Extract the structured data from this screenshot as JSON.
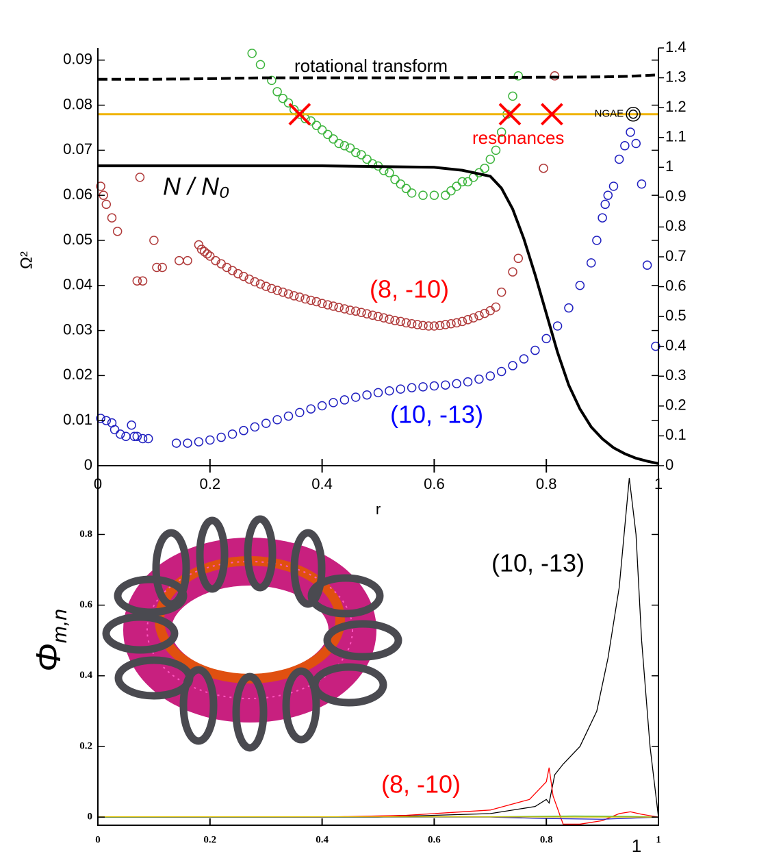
{
  "chart_data": [
    {
      "type": "scatter",
      "xlabel": "r",
      "ylabel": "Ω²",
      "xlim": [
        0,
        1
      ],
      "xticks": [
        0,
        0.2,
        0.4,
        0.6,
        0.8,
        1
      ],
      "ylim": [
        0,
        0.0927
      ],
      "yticks": [
        0,
        0.01,
        0.02,
        0.03,
        0.04,
        0.05,
        0.06,
        0.07,
        0.08,
        0.09
      ],
      "y2lim": [
        0,
        1.4
      ],
      "y2ticks": [
        0,
        0.1,
        0.2,
        0.3,
        0.4,
        0.5,
        0.6,
        0.7,
        0.8,
        0.9,
        1,
        1.1,
        1.2,
        1.3,
        1.4
      ],
      "hline": {
        "value": 0.078,
        "color": "#f0b400"
      },
      "crosses": {
        "color": "#ff0000",
        "x": [
          0.36,
          0.735,
          0.81
        ],
        "values": [
          0.078,
          0.078,
          0.078
        ]
      },
      "ngae": {
        "label": "NGAE",
        "x": 0.955,
        "value": 0.078,
        "color": "#000000"
      },
      "annotations": [
        {
          "text": "rotational transform",
          "color": "#000000"
        },
        {
          "text": "resonances",
          "color": "#ff0000"
        },
        {
          "text": "N / N₀",
          "color": "#000000"
        },
        {
          "text": "(8, -10)",
          "color": "#ff0000"
        },
        {
          "text": "(10, -13)",
          "color": "#0000ff"
        }
      ],
      "series": [
        {
          "style": "circle",
          "color": "#3cb43c",
          "x": [
            0.275,
            0.29,
            0.31,
            0.32,
            0.33,
            0.34,
            0.35,
            0.36,
            0.37,
            0.38,
            0.39,
            0.4,
            0.41,
            0.42,
            0.43,
            0.44,
            0.45,
            0.46,
            0.47,
            0.48,
            0.49,
            0.5,
            0.51,
            0.52,
            0.53,
            0.54,
            0.55,
            0.56,
            0.58,
            0.6,
            0.62,
            0.63,
            0.64,
            0.65,
            0.66,
            0.67,
            0.68,
            0.69,
            0.7,
            0.71,
            0.72,
            0.73,
            0.74,
            0.75
          ],
          "values": [
            0.0915,
            0.089,
            0.0855,
            0.083,
            0.0815,
            0.0805,
            0.079,
            0.078,
            0.077,
            0.0765,
            0.0755,
            0.0745,
            0.0735,
            0.0725,
            0.0715,
            0.071,
            0.0705,
            0.0695,
            0.069,
            0.068,
            0.067,
            0.0665,
            0.0655,
            0.065,
            0.0635,
            0.0625,
            0.0615,
            0.0605,
            0.06,
            0.06,
            0.06,
            0.061,
            0.062,
            0.063,
            0.063,
            0.064,
            0.065,
            0.066,
            0.068,
            0.07,
            0.074,
            0.078,
            0.082,
            0.0865
          ]
        },
        {
          "style": "circle",
          "color": "#b03a3a",
          "x": [
            0.005,
            0.01,
            0.015,
            0.025,
            0.035,
            0.07,
            0.075,
            0.08,
            0.1,
            0.105,
            0.115,
            0.145,
            0.16,
            0.18,
            0.185,
            0.19,
            0.195,
            0.2,
            0.21,
            0.22,
            0.23,
            0.24,
            0.25,
            0.26,
            0.27,
            0.28,
            0.29,
            0.3,
            0.31,
            0.32,
            0.33,
            0.34,
            0.35,
            0.36,
            0.37,
            0.38,
            0.39,
            0.4,
            0.41,
            0.42,
            0.43,
            0.44,
            0.45,
            0.46,
            0.47,
            0.48,
            0.49,
            0.5,
            0.51,
            0.52,
            0.53,
            0.54,
            0.55,
            0.56,
            0.57,
            0.58,
            0.59,
            0.6,
            0.61,
            0.62,
            0.63,
            0.64,
            0.65,
            0.66,
            0.67,
            0.68,
            0.69,
            0.7,
            0.71,
            0.72,
            0.74,
            0.75,
            0.795,
            0.815
          ],
          "values": [
            0.062,
            0.06,
            0.058,
            0.055,
            0.052,
            0.041,
            0.064,
            0.041,
            0.05,
            0.044,
            0.044,
            0.0455,
            0.0455,
            0.049,
            0.048,
            0.0475,
            0.047,
            0.0465,
            0.0455,
            0.0448,
            0.044,
            0.0433,
            0.0426,
            0.042,
            0.0414,
            0.0408,
            0.0403,
            0.0398,
            0.0393,
            0.0389,
            0.0385,
            0.0381,
            0.0377,
            0.0374,
            0.037,
            0.0367,
            0.0364,
            0.036,
            0.0357,
            0.0354,
            0.0351,
            0.0348,
            0.0345,
            0.0343,
            0.034,
            0.0337,
            0.0334,
            0.0331,
            0.0328,
            0.0325,
            0.0322,
            0.032,
            0.0317,
            0.0315,
            0.0313,
            0.0311,
            0.031,
            0.031,
            0.0311,
            0.0313,
            0.0315,
            0.0317,
            0.032,
            0.0324,
            0.0328,
            0.0333,
            0.0338,
            0.0344,
            0.0352,
            0.0385,
            0.043,
            0.046,
            0.066,
            0.0865
          ]
        },
        {
          "style": "circle",
          "color": "#2020c0",
          "x": [
            0.005,
            0.015,
            0.025,
            0.03,
            0.04,
            0.05,
            0.06,
            0.065,
            0.07,
            0.08,
            0.09,
            0.14,
            0.16,
            0.18,
            0.2,
            0.22,
            0.24,
            0.26,
            0.28,
            0.3,
            0.32,
            0.34,
            0.36,
            0.38,
            0.4,
            0.42,
            0.44,
            0.46,
            0.48,
            0.5,
            0.52,
            0.54,
            0.56,
            0.58,
            0.6,
            0.62,
            0.64,
            0.66,
            0.68,
            0.7,
            0.72,
            0.74,
            0.76,
            0.78,
            0.8,
            0.82,
            0.84,
            0.86,
            0.88,
            0.89,
            0.9,
            0.905,
            0.91,
            0.92,
            0.93,
            0.94,
            0.95,
            0.96,
            0.97,
            0.98,
            0.995
          ],
          "values": [
            0.0105,
            0.01,
            0.0095,
            0.008,
            0.007,
            0.0065,
            0.009,
            0.0065,
            0.0065,
            0.006,
            0.006,
            0.005,
            0.005,
            0.0053,
            0.0057,
            0.0063,
            0.007,
            0.0078,
            0.0086,
            0.0094,
            0.0102,
            0.011,
            0.0118,
            0.0126,
            0.0133,
            0.014,
            0.0146,
            0.0152,
            0.0157,
            0.0162,
            0.0166,
            0.017,
            0.0173,
            0.0175,
            0.0177,
            0.0179,
            0.0182,
            0.0186,
            0.0192,
            0.0199,
            0.0209,
            0.0222,
            0.0237,
            0.0256,
            0.0282,
            0.031,
            0.035,
            0.04,
            0.045,
            0.05,
            0.055,
            0.058,
            0.06,
            0.062,
            0.068,
            0.071,
            0.074,
            0.0715,
            0.0625,
            0.0445,
            0.0265
          ]
        },
        {
          "style": "dashed",
          "axis": "y2",
          "color": "#000000",
          "x": [
            0,
            0.1,
            0.2,
            0.3,
            0.4,
            0.5,
            0.6,
            0.7,
            0.8,
            0.9,
            0.95,
            1
          ],
          "values": [
            1.295,
            1.295,
            1.297,
            1.3,
            1.3,
            1.3,
            1.3,
            1.301,
            1.302,
            1.303,
            1.305,
            1.31
          ]
        },
        {
          "style": "solid",
          "axis": "y2",
          "color": "#000000",
          "x": [
            0,
            0.2,
            0.4,
            0.6,
            0.65,
            0.7,
            0.72,
            0.74,
            0.76,
            0.78,
            0.8,
            0.82,
            0.84,
            0.86,
            0.88,
            0.9,
            0.92,
            0.94,
            0.96,
            0.98,
            1
          ],
          "values": [
            1.005,
            1.005,
            1.005,
            1.0,
            0.99,
            0.97,
            0.93,
            0.86,
            0.76,
            0.64,
            0.51,
            0.38,
            0.27,
            0.19,
            0.13,
            0.09,
            0.06,
            0.04,
            0.025,
            0.015,
            0.007
          ]
        }
      ]
    },
    {
      "type": "line",
      "ylabel": "Φ",
      "ylabel_sub": "m,n",
      "xlim": [
        0,
        1
      ],
      "xticks": [
        0,
        0.2,
        0.4,
        0.6,
        0.8,
        1
      ],
      "ylim": [
        -0.023,
        0.985
      ],
      "yticks": [
        0,
        0.2,
        0.4,
        0.6,
        0.8
      ],
      "annotations": [
        {
          "text": "(10, -13)",
          "color": "#000000"
        },
        {
          "text": "(8, -10)",
          "color": "#ff0000"
        },
        {
          "text": "1",
          "color": "#000000"
        }
      ],
      "series": [
        {
          "color": "#000000",
          "x": [
            0,
            0.5,
            0.6,
            0.7,
            0.78,
            0.8,
            0.805,
            0.815,
            0.83,
            0.86,
            0.89,
            0.91,
            0.93,
            0.948,
            0.96,
            0.97,
            0.985,
            1
          ],
          "values": [
            0,
            0,
            0.005,
            0.01,
            0.03,
            0.05,
            0.04,
            0.12,
            0.15,
            0.2,
            0.3,
            0.45,
            0.65,
            0.96,
            0.8,
            0.5,
            0.2,
            0
          ]
        },
        {
          "color": "#ff0000",
          "x": [
            0,
            0.4,
            0.55,
            0.7,
            0.77,
            0.8,
            0.805,
            0.812,
            0.83,
            0.86,
            0.9,
            0.93,
            0.95,
            0.97,
            1
          ],
          "values": [
            0,
            0,
            0.005,
            0.02,
            0.05,
            0.1,
            0.14,
            0.06,
            -0.02,
            -0.02,
            -0.01,
            0.01,
            0.015,
            0.008,
            0
          ]
        },
        {
          "color": "#2020c0",
          "x": [
            0,
            0.7,
            0.8,
            0.9,
            0.95,
            1
          ],
          "values": [
            0,
            0,
            -0.004,
            -0.006,
            -0.003,
            0
          ]
        },
        {
          "color": "#3cb43c",
          "x": [
            0,
            0.7,
            0.85,
            0.95,
            1
          ],
          "values": [
            0,
            0.001,
            0.003,
            0.002,
            0
          ]
        },
        {
          "color": "#e0c000",
          "x": [
            0,
            0.5,
            1
          ],
          "values": [
            0.001,
            0.001,
            0
          ]
        }
      ]
    }
  ]
}
